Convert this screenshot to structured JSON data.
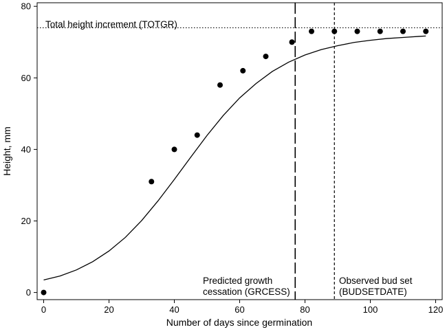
{
  "chart_data": {
    "type": "scatter",
    "title": "",
    "xlabel": "Number of days since germination",
    "ylabel": "Height, mm",
    "xlim": [
      -2,
      122
    ],
    "ylim": [
      -2,
      81
    ],
    "xticks": [
      0,
      20,
      40,
      60,
      80,
      100,
      120
    ],
    "yticks": [
      0,
      20,
      40,
      60,
      80
    ],
    "grid": false,
    "legend": "none",
    "observed_points": {
      "x": [
        0,
        33,
        40,
        47,
        54,
        61,
        68,
        76,
        82,
        89,
        96,
        103,
        110,
        117
      ],
      "y": [
        0,
        31,
        40,
        44,
        58,
        62,
        66,
        70,
        73,
        73,
        73,
        73,
        73,
        73
      ]
    },
    "fitted_curve": {
      "model": "logistic",
      "x": [
        0,
        5,
        10,
        15,
        20,
        25,
        30,
        35,
        40,
        45,
        50,
        55,
        60,
        65,
        70,
        75,
        80,
        85,
        90,
        95,
        100,
        105,
        110,
        115,
        117
      ],
      "y": [
        3.5,
        4.6,
        6.3,
        8.6,
        11.6,
        15.4,
        20.1,
        25.6,
        31.6,
        37.8,
        43.9,
        49.5,
        54.4,
        58.4,
        61.8,
        64.4,
        66.4,
        67.9,
        69.0,
        69.9,
        70.5,
        71.0,
        71.3,
        71.6,
        71.7
      ]
    },
    "reference_lines": [
      {
        "orientation": "horizontal",
        "value": 74,
        "style": "dotted",
        "label": "Total height increment (TOTGR)"
      },
      {
        "orientation": "vertical",
        "value": 77,
        "style": "long-dash",
        "label": [
          "Predicted growth",
          "cessation (GRCESS)"
        ]
      },
      {
        "orientation": "vertical",
        "value": 89,
        "style": "short-dash",
        "label": [
          "Observed bud set",
          "(BUDSETDATE)"
        ]
      }
    ],
    "colors": {
      "points": "#000000",
      "curve": "#000000",
      "lines": "#000000",
      "background": "#ffffff"
    }
  }
}
